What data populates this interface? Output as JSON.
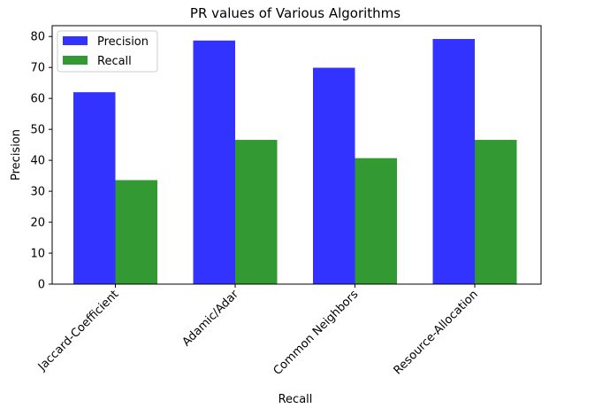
{
  "chart_data": {
    "type": "bar",
    "title": "PR values of Various Algorithms",
    "xlabel": "Recall",
    "ylabel": "Precision",
    "categories": [
      "Jaccard-Coefficient",
      "Adamic/Adar",
      "Common Neighbors",
      "Resource-Allocation"
    ],
    "series": [
      {
        "name": "Precision",
        "color": "#3333ff",
        "values": [
          62,
          78.7,
          69.9,
          79.2
        ]
      },
      {
        "name": "Recall",
        "color": "#339933",
        "values": [
          33.6,
          46.6,
          40.7,
          46.6
        ]
      }
    ],
    "ylim": [
      0,
      83.5
    ],
    "yticks": [
      0,
      10,
      20,
      30,
      40,
      50,
      60,
      70,
      80
    ],
    "grid": false,
    "legend_position": "top-left"
  }
}
